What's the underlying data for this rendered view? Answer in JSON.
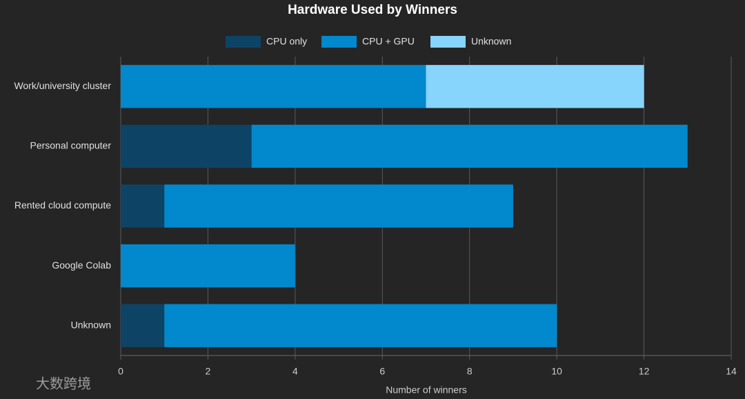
{
  "chart_data": {
    "type": "bar",
    "orientation": "horizontal",
    "stacked": true,
    "title": "Hardware Used by Winners",
    "xlabel": "Number of winners",
    "categories": [
      "Work/university cluster",
      "Personal computer",
      "Rented cloud compute",
      "Google Colab",
      "Unknown"
    ],
    "series": [
      {
        "name": "CPU only",
        "color": "#0d4466",
        "values": [
          0,
          3,
          1,
          0,
          1
        ]
      },
      {
        "name": "CPU + GPU",
        "color": "#0288cc",
        "values": [
          7,
          10,
          8,
          4,
          9
        ]
      },
      {
        "name": "Unknown",
        "color": "#87d4fc",
        "values": [
          5,
          0,
          0,
          0,
          0
        ]
      }
    ],
    "xlim": [
      0,
      14
    ],
    "xticks": [
      0,
      2,
      4,
      6,
      8,
      10,
      12,
      14
    ],
    "grid": true,
    "legend": "top",
    "watermark": "大数跨境"
  }
}
